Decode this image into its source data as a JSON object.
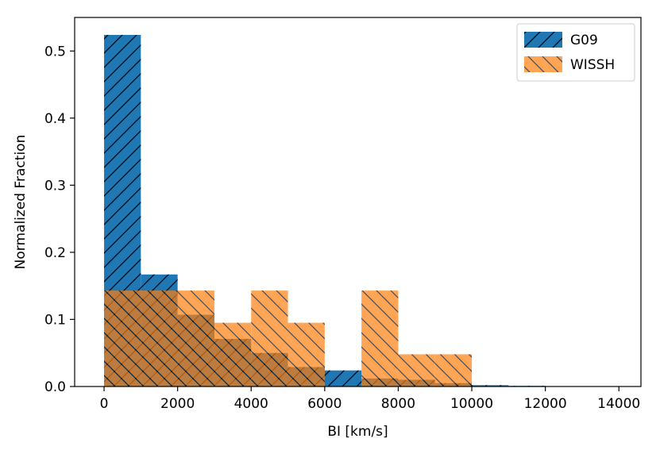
{
  "chart_data": {
    "type": "bar",
    "subtype": "histogram",
    "title": "",
    "xlabel": "BI [km/s]",
    "ylabel": "Normalized Fraction",
    "xlim": [
      -800,
      14600
    ],
    "ylim": [
      0,
      0.55
    ],
    "xticks": [
      0,
      2000,
      4000,
      6000,
      8000,
      10000,
      12000,
      14000
    ],
    "yticks": [
      0.0,
      0.1,
      0.2,
      0.3,
      0.4,
      0.5
    ],
    "xtick_labels": [
      "0",
      "2000",
      "4000",
      "6000",
      "8000",
      "10000",
      "12000",
      "14000"
    ],
    "ytick_labels": [
      "0.0",
      "0.1",
      "0.2",
      "0.3",
      "0.4",
      "0.5"
    ],
    "bin_edges": [
      0,
      1000,
      2000,
      3000,
      4000,
      5000,
      6000,
      7000,
      8000,
      9000,
      10000,
      11000,
      12000,
      13000,
      14000
    ],
    "series": [
      {
        "name": "G09",
        "color": "#1f77b4",
        "hatch": "forward-diagonal",
        "values": [
          0.524,
          0.167,
          0.107,
          0.071,
          0.05,
          0.029,
          0.024,
          0.012,
          0.01,
          0.005,
          0.002,
          0.001,
          0.0,
          0.0
        ]
      },
      {
        "name": "WISSH",
        "color": "#ff7f0e",
        "hatch": "back-diagonal",
        "alpha": 0.7,
        "values": [
          0.143,
          0.143,
          0.143,
          0.095,
          0.143,
          0.095,
          0.0,
          0.143,
          0.048,
          0.048,
          0.0,
          0.0,
          0.0,
          0.0
        ]
      }
    ],
    "grid": false,
    "legend_position": "top-right"
  }
}
